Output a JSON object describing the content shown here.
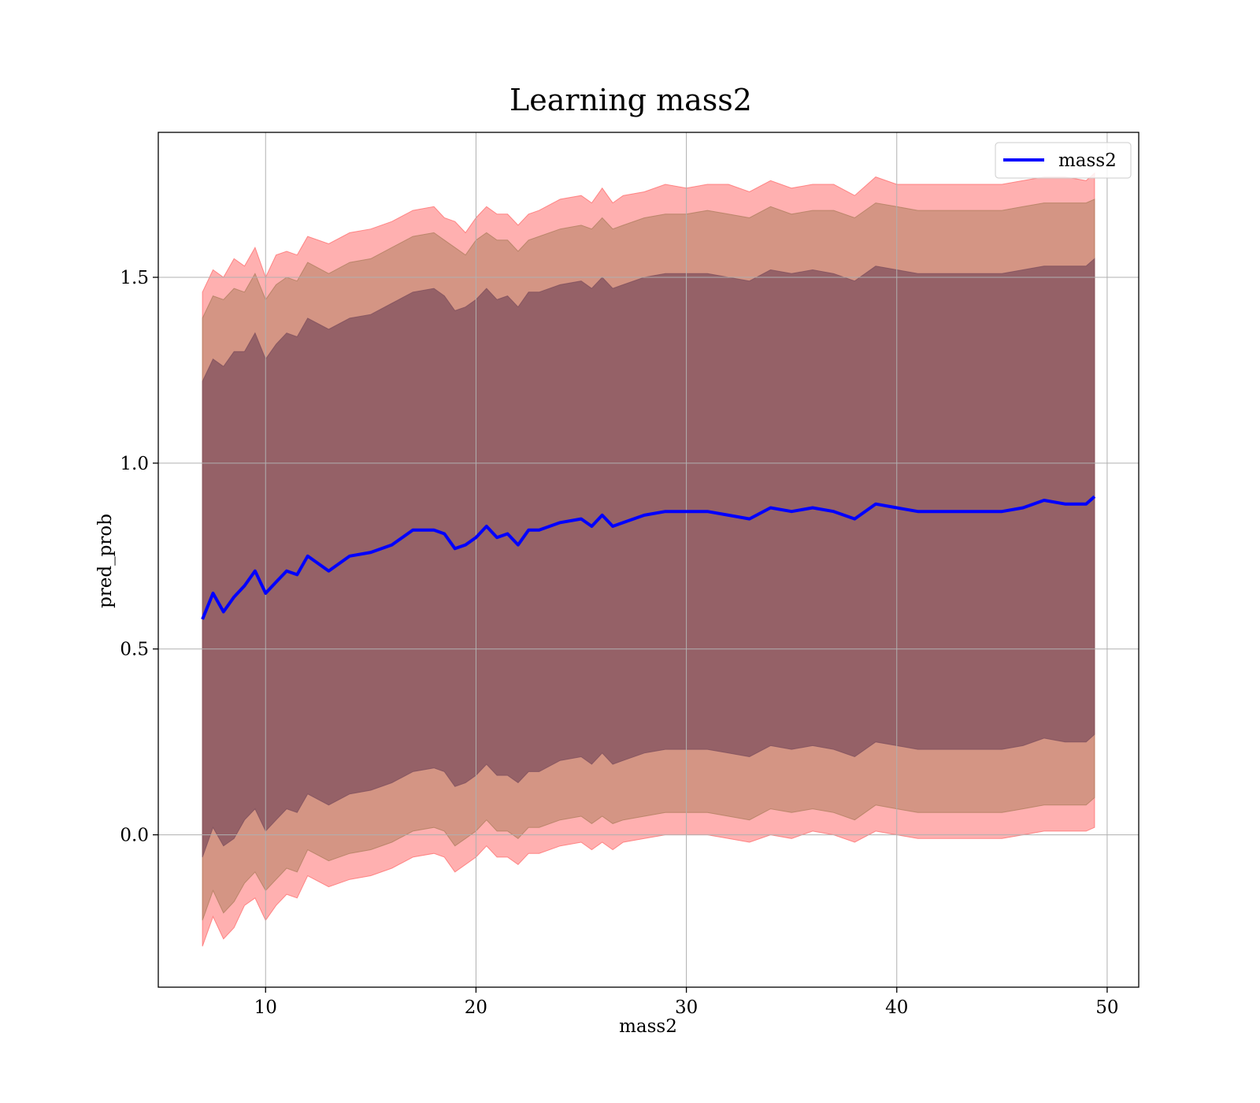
{
  "chart_data": {
    "type": "line",
    "title": "Learning mass2",
    "xlabel": "mass2",
    "ylabel": "pred_prob",
    "xlim": [
      4.9,
      51.5
    ],
    "ylim": [
      -0.41,
      1.89
    ],
    "xticks": [
      10,
      20,
      30,
      40,
      50
    ],
    "yticks": [
      0.0,
      0.5,
      1.0,
      1.5
    ],
    "grid": true,
    "legend_position": "top-right",
    "legend": [
      {
        "label": "mass2",
        "color": "#0000ff"
      }
    ],
    "colors": {
      "line": "#0000ff",
      "band_3sd": "#ff7070",
      "band_2sd": "#b08060",
      "band_1sd": "#80505e"
    },
    "x": [
      7.0,
      7.5,
      8.0,
      8.5,
      9.0,
      9.5,
      10.0,
      10.5,
      11.0,
      11.5,
      12.0,
      13.0,
      14.0,
      15.0,
      16.0,
      17.0,
      18.0,
      18.5,
      19.0,
      19.5,
      20.0,
      20.5,
      21.0,
      21.5,
      22.0,
      22.5,
      23.0,
      24.0,
      25.0,
      25.5,
      26.0,
      26.5,
      27.0,
      28.0,
      29.0,
      30.0,
      31.0,
      32.0,
      33.0,
      34.0,
      35.0,
      36.0,
      37.0,
      38.0,
      39.0,
      40.0,
      41.0,
      42.0,
      43.0,
      44.0,
      45.0,
      46.0,
      47.0,
      48.0,
      49.0,
      49.4
    ],
    "series": [
      {
        "name": "mass2",
        "values": [
          0.58,
          0.65,
          0.6,
          0.64,
          0.67,
          0.71,
          0.65,
          0.68,
          0.71,
          0.7,
          0.75,
          0.71,
          0.75,
          0.76,
          0.78,
          0.82,
          0.82,
          0.81,
          0.77,
          0.78,
          0.8,
          0.83,
          0.8,
          0.81,
          0.78,
          0.82,
          0.82,
          0.84,
          0.85,
          0.83,
          0.86,
          0.83,
          0.84,
          0.86,
          0.87,
          0.87,
          0.87,
          0.86,
          0.85,
          0.88,
          0.87,
          0.88,
          0.87,
          0.85,
          0.89,
          0.88,
          0.87,
          0.87,
          0.87,
          0.87,
          0.87,
          0.88,
          0.9,
          0.89,
          0.89,
          0.91
        ]
      }
    ],
    "bands": [
      {
        "level": "3sd",
        "upper": [
          1.46,
          1.52,
          1.5,
          1.55,
          1.53,
          1.58,
          1.5,
          1.56,
          1.57,
          1.56,
          1.61,
          1.59,
          1.62,
          1.63,
          1.65,
          1.68,
          1.69,
          1.66,
          1.65,
          1.62,
          1.66,
          1.69,
          1.67,
          1.67,
          1.64,
          1.67,
          1.68,
          1.71,
          1.72,
          1.7,
          1.74,
          1.7,
          1.72,
          1.73,
          1.75,
          1.74,
          1.75,
          1.75,
          1.73,
          1.76,
          1.74,
          1.75,
          1.75,
          1.72,
          1.77,
          1.75,
          1.75,
          1.75,
          1.75,
          1.75,
          1.75,
          1.76,
          1.77,
          1.77,
          1.76,
          1.78
        ],
        "lower": [
          -0.3,
          -0.22,
          -0.28,
          -0.25,
          -0.19,
          -0.17,
          -0.23,
          -0.19,
          -0.16,
          -0.17,
          -0.11,
          -0.14,
          -0.12,
          -0.11,
          -0.09,
          -0.06,
          -0.05,
          -0.06,
          -0.1,
          -0.08,
          -0.06,
          -0.03,
          -0.06,
          -0.06,
          -0.08,
          -0.05,
          -0.05,
          -0.03,
          -0.02,
          -0.04,
          -0.02,
          -0.04,
          -0.02,
          -0.01,
          0.0,
          0.0,
          0.0,
          -0.01,
          -0.02,
          0.0,
          -0.01,
          0.01,
          0.0,
          -0.02,
          0.01,
          0.0,
          -0.01,
          -0.01,
          -0.01,
          -0.01,
          -0.01,
          0.0,
          0.01,
          0.01,
          0.01,
          0.02
        ]
      },
      {
        "level": "2sd",
        "upper": [
          1.39,
          1.45,
          1.44,
          1.47,
          1.46,
          1.51,
          1.44,
          1.48,
          1.5,
          1.49,
          1.54,
          1.51,
          1.54,
          1.55,
          1.58,
          1.61,
          1.62,
          1.6,
          1.58,
          1.56,
          1.6,
          1.62,
          1.6,
          1.6,
          1.57,
          1.6,
          1.61,
          1.63,
          1.64,
          1.63,
          1.66,
          1.63,
          1.64,
          1.66,
          1.67,
          1.67,
          1.68,
          1.67,
          1.66,
          1.69,
          1.67,
          1.68,
          1.68,
          1.66,
          1.7,
          1.69,
          1.68,
          1.68,
          1.68,
          1.68,
          1.68,
          1.69,
          1.7,
          1.7,
          1.7,
          1.71
        ],
        "lower": [
          -0.23,
          -0.15,
          -0.21,
          -0.18,
          -0.13,
          -0.1,
          -0.15,
          -0.12,
          -0.09,
          -0.1,
          -0.04,
          -0.07,
          -0.05,
          -0.04,
          -0.02,
          0.01,
          0.02,
          0.01,
          -0.03,
          -0.01,
          0.01,
          0.04,
          0.01,
          0.01,
          -0.01,
          0.02,
          0.02,
          0.04,
          0.05,
          0.03,
          0.05,
          0.03,
          0.04,
          0.05,
          0.06,
          0.06,
          0.06,
          0.05,
          0.04,
          0.07,
          0.06,
          0.07,
          0.06,
          0.04,
          0.08,
          0.07,
          0.06,
          0.06,
          0.06,
          0.06,
          0.06,
          0.07,
          0.08,
          0.08,
          0.08,
          0.1
        ]
      },
      {
        "level": "1sd",
        "upper": [
          1.22,
          1.28,
          1.26,
          1.3,
          1.3,
          1.35,
          1.28,
          1.32,
          1.35,
          1.34,
          1.39,
          1.36,
          1.39,
          1.4,
          1.43,
          1.46,
          1.47,
          1.45,
          1.41,
          1.42,
          1.44,
          1.47,
          1.44,
          1.45,
          1.42,
          1.46,
          1.46,
          1.48,
          1.49,
          1.47,
          1.5,
          1.47,
          1.48,
          1.5,
          1.51,
          1.51,
          1.51,
          1.5,
          1.49,
          1.52,
          1.51,
          1.52,
          1.51,
          1.49,
          1.53,
          1.52,
          1.51,
          1.51,
          1.51,
          1.51,
          1.51,
          1.52,
          1.53,
          1.53,
          1.53,
          1.55
        ],
        "lower": [
          -0.06,
          0.02,
          -0.03,
          -0.01,
          0.04,
          0.07,
          0.01,
          0.04,
          0.07,
          0.06,
          0.11,
          0.08,
          0.11,
          0.12,
          0.14,
          0.17,
          0.18,
          0.17,
          0.13,
          0.14,
          0.16,
          0.19,
          0.16,
          0.16,
          0.14,
          0.17,
          0.17,
          0.2,
          0.21,
          0.19,
          0.22,
          0.19,
          0.2,
          0.22,
          0.23,
          0.23,
          0.23,
          0.22,
          0.21,
          0.24,
          0.23,
          0.24,
          0.23,
          0.21,
          0.25,
          0.24,
          0.23,
          0.23,
          0.23,
          0.23,
          0.23,
          0.24,
          0.26,
          0.25,
          0.25,
          0.27
        ]
      }
    ]
  }
}
